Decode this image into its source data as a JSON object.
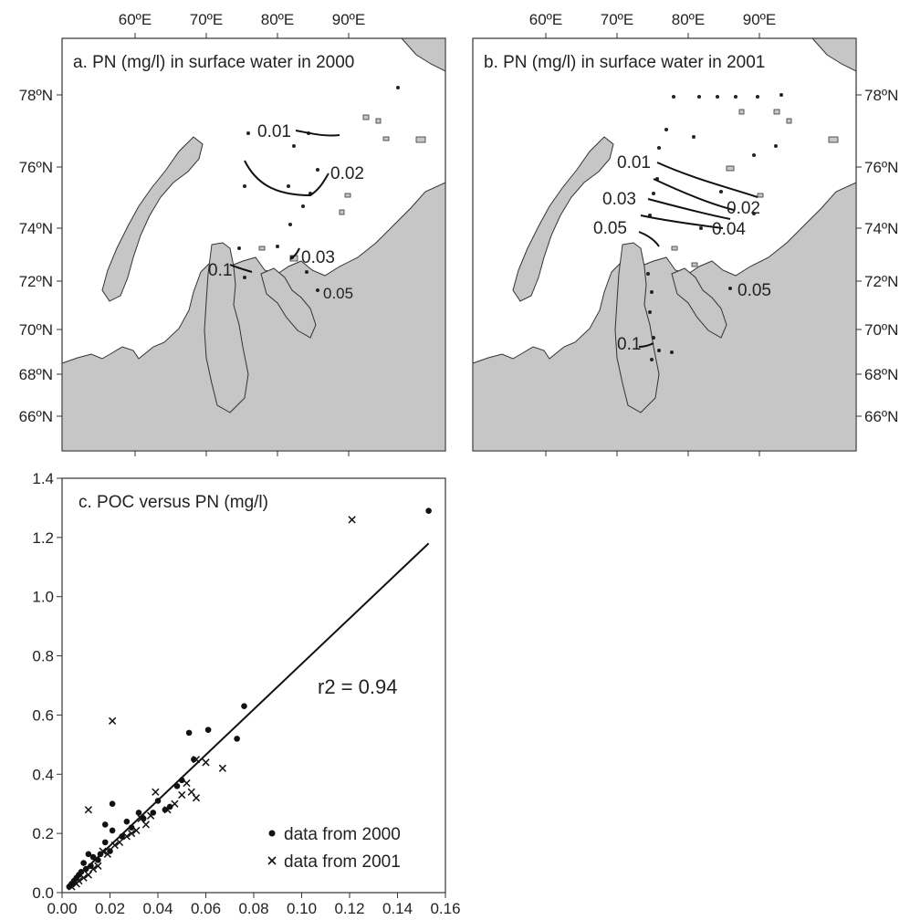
{
  "maps": [
    {
      "title": "a. PN (mg/l) in surface water in 2000",
      "lon_ticks": [
        "60ºE",
        "70ºE",
        "80ºE",
        "90ºE"
      ],
      "lat_ticks": [
        "78ºN",
        "76ºN",
        "74ºN",
        "72ºN",
        "70ºN",
        "68ºN",
        "66ºN"
      ],
      "contour_labels": [
        "0.01",
        "0.02",
        "0.03",
        "0.05",
        "0.1"
      ]
    },
    {
      "title": "b. PN (mg/l) in surface water in 2001",
      "lon_ticks": [
        "60ºE",
        "70ºE",
        "80ºE",
        "90ºE"
      ],
      "lat_ticks": [
        "78ºN",
        "76ºN",
        "74ºN",
        "72ºN",
        "70ºN",
        "68ºN",
        "66ºN"
      ],
      "contour_labels": [
        "0.01",
        "0.02",
        "0.03",
        "0.04",
        "0.05",
        "0.05",
        "0.1"
      ]
    }
  ],
  "chart_data": {
    "type": "scatter",
    "title": "c. POC versus PN (mg/l)",
    "xlabel": "",
    "ylabel": "",
    "xlim": [
      0,
      0.16
    ],
    "ylim": [
      0,
      1.4
    ],
    "x_ticks": [
      "0.00",
      "0.02",
      "0.04",
      "0.06",
      "0.08",
      "0.10",
      "0.12",
      "0.14",
      "0.16"
    ],
    "y_ticks": [
      "0.0",
      "0.2",
      "0.4",
      "0.6",
      "0.8",
      "1.0",
      "1.2",
      "1.4"
    ],
    "annotation": "r2 = 0.94",
    "fit_line": {
      "x": [
        0.002,
        0.153
      ],
      "y": [
        0.02,
        1.18
      ]
    },
    "legend_position": "bottom-right",
    "series": [
      {
        "name": "data from 2000",
        "marker": "dot",
        "points": [
          [
            0.153,
            1.29
          ],
          [
            0.076,
            0.63
          ],
          [
            0.073,
            0.52
          ],
          [
            0.061,
            0.55
          ],
          [
            0.053,
            0.54
          ],
          [
            0.055,
            0.45
          ],
          [
            0.05,
            0.38
          ],
          [
            0.048,
            0.36
          ],
          [
            0.045,
            0.29
          ],
          [
            0.043,
            0.28
          ],
          [
            0.04,
            0.31
          ],
          [
            0.038,
            0.27
          ],
          [
            0.034,
            0.25
          ],
          [
            0.032,
            0.27
          ],
          [
            0.029,
            0.22
          ],
          [
            0.027,
            0.24
          ],
          [
            0.025,
            0.19
          ],
          [
            0.021,
            0.21
          ],
          [
            0.02,
            0.14
          ],
          [
            0.018,
            0.17
          ],
          [
            0.016,
            0.13
          ],
          [
            0.015,
            0.11
          ],
          [
            0.013,
            0.12
          ],
          [
            0.012,
            0.09
          ],
          [
            0.011,
            0.13
          ],
          [
            0.01,
            0.08
          ],
          [
            0.009,
            0.1
          ],
          [
            0.008,
            0.07
          ],
          [
            0.007,
            0.06
          ],
          [
            0.006,
            0.05
          ],
          [
            0.005,
            0.04
          ],
          [
            0.004,
            0.03
          ],
          [
            0.003,
            0.02
          ],
          [
            0.018,
            0.23
          ],
          [
            0.021,
            0.3
          ]
        ]
      },
      {
        "name": "data from 2001",
        "marker": "cross",
        "points": [
          [
            0.121,
            1.26
          ],
          [
            0.021,
            0.58
          ],
          [
            0.011,
            0.28
          ],
          [
            0.067,
            0.42
          ],
          [
            0.056,
            0.45
          ],
          [
            0.06,
            0.44
          ],
          [
            0.052,
            0.37
          ],
          [
            0.054,
            0.34
          ],
          [
            0.05,
            0.33
          ],
          [
            0.047,
            0.3
          ],
          [
            0.044,
            0.28
          ],
          [
            0.039,
            0.34
          ],
          [
            0.037,
            0.26
          ],
          [
            0.035,
            0.23
          ],
          [
            0.033,
            0.25
          ],
          [
            0.031,
            0.21
          ],
          [
            0.029,
            0.2
          ],
          [
            0.027,
            0.19
          ],
          [
            0.024,
            0.17
          ],
          [
            0.022,
            0.16
          ],
          [
            0.019,
            0.13
          ],
          [
            0.017,
            0.14
          ],
          [
            0.015,
            0.09
          ],
          [
            0.013,
            0.08
          ],
          [
            0.011,
            0.06
          ],
          [
            0.009,
            0.05
          ],
          [
            0.007,
            0.04
          ],
          [
            0.006,
            0.03
          ],
          [
            0.004,
            0.02
          ],
          [
            0.056,
            0.32
          ]
        ]
      }
    ]
  }
}
